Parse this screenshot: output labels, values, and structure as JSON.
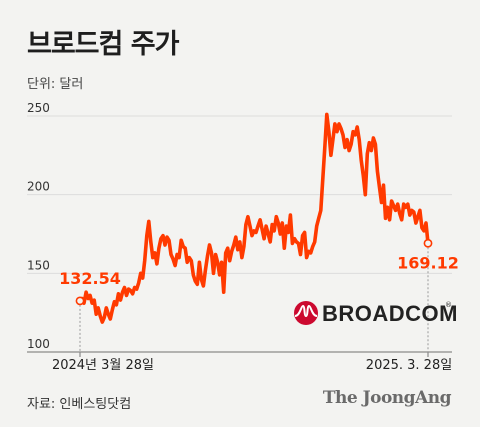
{
  "title": "브로드컴 주가",
  "unit_label": "단위: 달러",
  "source_label": "자료: 인베스팅닷컴",
  "publisher": "The JoongAng",
  "logo": {
    "text": "BROADCOM",
    "symbol": "®",
    "color": "#cc092f"
  },
  "colors": {
    "line": "#ff3a00",
    "axis": "#9a9a9a",
    "grid": "#dcdcdc",
    "text": "#222222"
  },
  "chart_data": {
    "type": "line",
    "xlabel": "",
    "ylabel": "",
    "ylim": [
      100,
      250
    ],
    "yticks": [
      100,
      150,
      200,
      250
    ],
    "grid": true,
    "x_tick_labels": [
      "2024년 3월 28일",
      "2025. 3. 28일"
    ],
    "start_label": "132.54",
    "end_label": "169.12",
    "series": [
      {
        "values": [
          132.5,
          134,
          131,
          138,
          134,
          136,
          131,
          133,
          124,
          128,
          123,
          119,
          122,
          128,
          124,
          121,
          127,
          132,
          130,
          137,
          133,
          138,
          141,
          136,
          140,
          139,
          137,
          141,
          140,
          144,
          150,
          147,
          158,
          174,
          183,
          170,
          160,
          163,
          156,
          166,
          172,
          174,
          168,
          173,
          171,
          162,
          159,
          155,
          162,
          160,
          171,
          167,
          166,
          157,
          160,
          158,
          149,
          145,
          143,
          157,
          146,
          142,
          152,
          161,
          168,
          163,
          150,
          162,
          157,
          149,
          157,
          138,
          163,
          166,
          158,
          164,
          168,
          173,
          165,
          170,
          160,
          167,
          181,
          186,
          180,
          174,
          177,
          176,
          180,
          184,
          178,
          172,
          180,
          175,
          170,
          181,
          177,
          186,
          182,
          175,
          182,
          166,
          180,
          176,
          187,
          169,
          172,
          170,
          169,
          162,
          174,
          176,
          160,
          164,
          163,
          167,
          170,
          180,
          185,
          190,
          210,
          230,
          251,
          240,
          225,
          235,
          245,
          240,
          245,
          242,
          238,
          230,
          235,
          228,
          232,
          240,
          238,
          243,
          235,
          222,
          212,
          200,
          226,
          233,
          228,
          236,
          232,
          215,
          205,
          195,
          206,
          185,
          192,
          184,
          196,
          193,
          190,
          194,
          188,
          184,
          194,
          192,
          194,
          187,
          190,
          189,
          182,
          186,
          190,
          179,
          177,
          182,
          169.12
        ]
      }
    ]
  }
}
